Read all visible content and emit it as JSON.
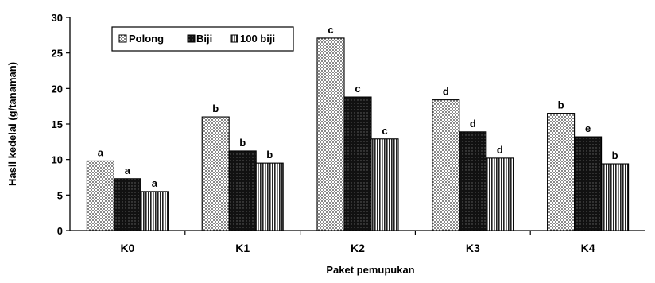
{
  "chart_data": {
    "type": "bar",
    "xlabel": "Paket pemupukan",
    "ylabel": "Hasil kedelai (g/tanaman)",
    "ylim": [
      0,
      30
    ],
    "yticks": [
      0,
      5,
      10,
      15,
      20,
      25,
      30
    ],
    "categories": [
      "K0",
      "K1",
      "K2",
      "K3",
      "K4"
    ],
    "legend_position": "top-left",
    "grid": false,
    "series": [
      {
        "name": "Polong",
        "pattern": "dots",
        "values": [
          9.8,
          16.0,
          27.1,
          18.4,
          16.5
        ],
        "labels": [
          "a",
          "b",
          "c",
          "d",
          "b"
        ]
      },
      {
        "name": "Biji",
        "pattern": "dark",
        "values": [
          7.3,
          11.2,
          18.8,
          13.9,
          13.2
        ],
        "labels": [
          "a",
          "b",
          "c",
          "d",
          "e"
        ]
      },
      {
        "name": "100 biji",
        "pattern": "vertical-lines",
        "values": [
          5.5,
          9.5,
          12.9,
          10.2,
          9.4
        ],
        "labels": [
          "a",
          "b",
          "c",
          "d",
          "b"
        ]
      }
    ]
  }
}
